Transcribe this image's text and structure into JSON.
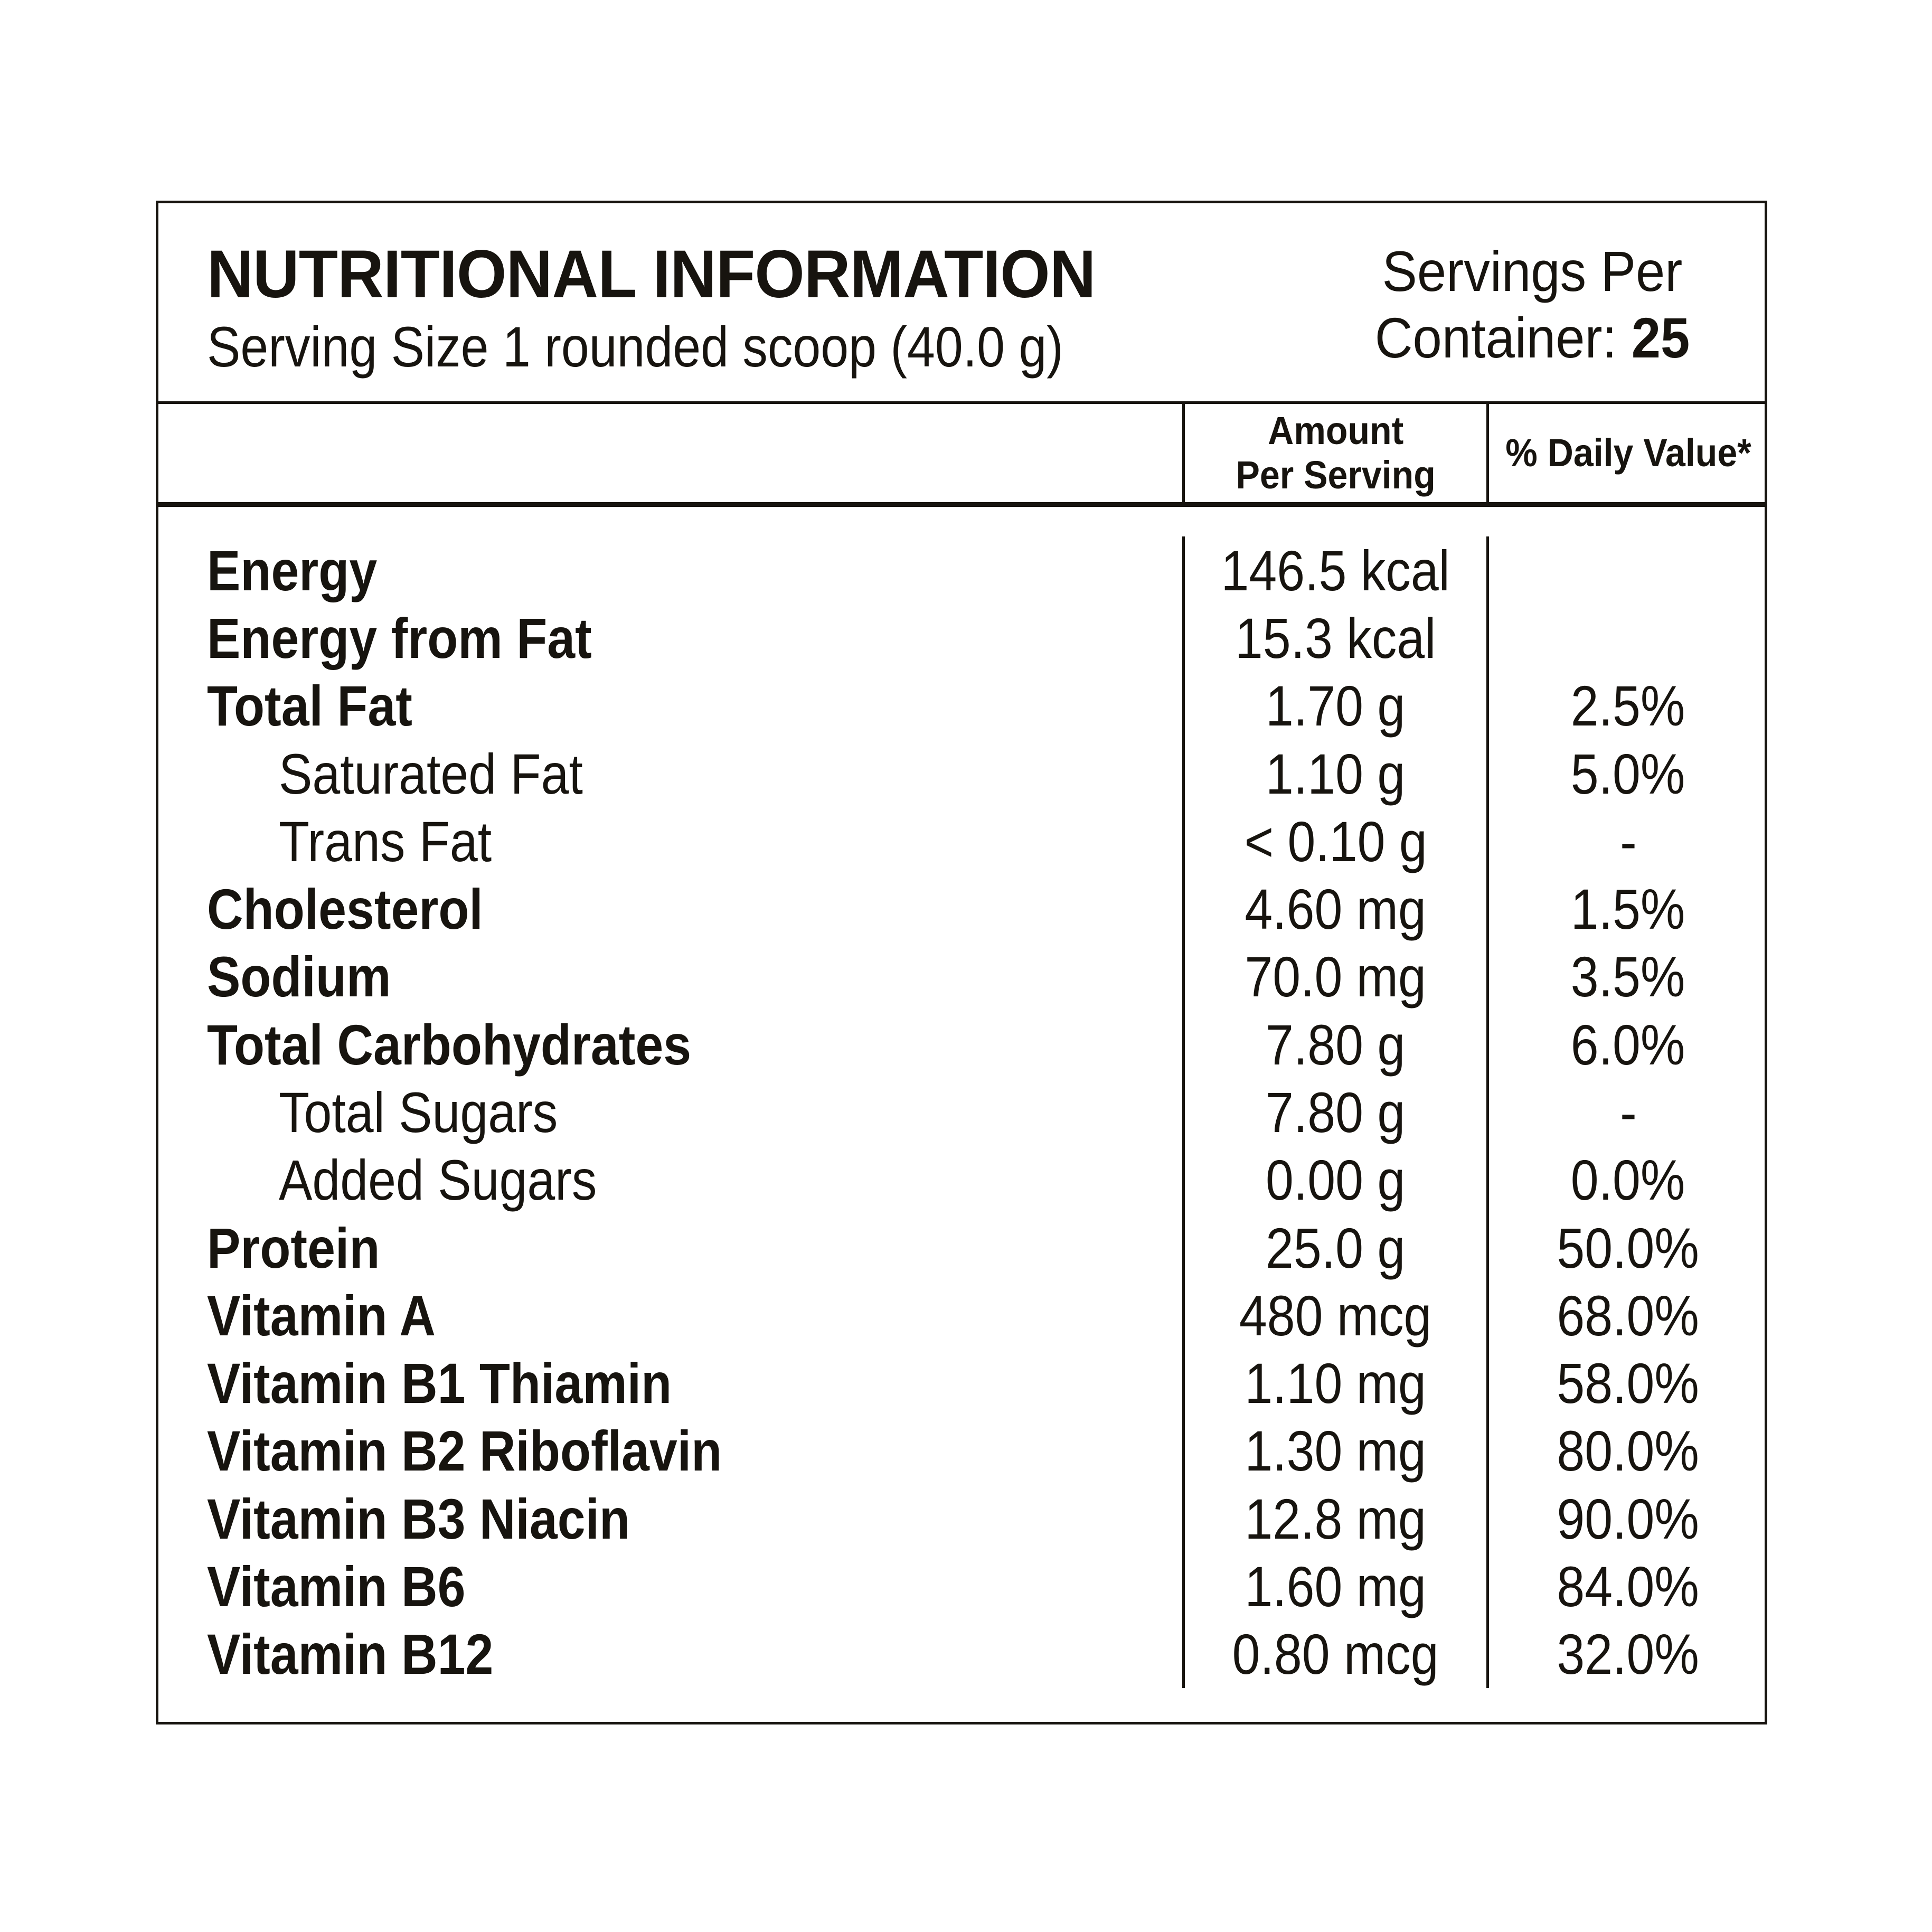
{
  "page": {
    "background": "#ffffff",
    "line_color": "#17140f",
    "text_color": "#17140f"
  },
  "header": {
    "title": "NUTRITIONAL INFORMATION",
    "serving_size": "Serving Size 1 rounded scoop (40.0 g)",
    "servings_line1": "Servings Per",
    "servings_line2_label": "Container: ",
    "servings_count": "25"
  },
  "columns": {
    "amount_line1": "Amount",
    "amount_line2": "Per Serving",
    "daily_value": "% Daily Value*"
  },
  "rows": [
    {
      "label": "Energy",
      "amount": "146.5 kcal",
      "dv": "",
      "bold": true,
      "indent": false
    },
    {
      "label": "Energy from Fat",
      "amount": "15.3 kcal",
      "dv": "",
      "bold": true,
      "indent": false
    },
    {
      "label": "Total Fat",
      "amount": "1.70 g",
      "dv": "2.5%",
      "bold": true,
      "indent": false
    },
    {
      "label": "Saturated Fat",
      "amount": "1.10 g",
      "dv": "5.0%",
      "bold": false,
      "indent": true
    },
    {
      "label": "Trans Fat",
      "amount": "< 0.10 g",
      "dv": "-",
      "bold": false,
      "indent": true
    },
    {
      "label": "Cholesterol",
      "amount": "4.60 mg",
      "dv": "1.5%",
      "bold": true,
      "indent": false
    },
    {
      "label": "Sodium",
      "amount": "70.0 mg",
      "dv": "3.5%",
      "bold": true,
      "indent": false
    },
    {
      "label": "Total Carbohydrates",
      "amount": "7.80 g",
      "dv": "6.0%",
      "bold": true,
      "indent": false
    },
    {
      "label": "Total Sugars",
      "amount": "7.80 g",
      "dv": "-",
      "bold": false,
      "indent": true
    },
    {
      "label": "Added Sugars",
      "amount": "0.00 g",
      "dv": "0.0%",
      "bold": false,
      "indent": true
    },
    {
      "label": "Protein",
      "amount": "25.0 g",
      "dv": "50.0%",
      "bold": true,
      "indent": false
    },
    {
      "label": "Vitamin A",
      "amount": "480 mcg",
      "dv": "68.0%",
      "bold": true,
      "indent": false
    },
    {
      "label": "Vitamin B1 Thiamin",
      "amount": "1.10 mg",
      "dv": "58.0%",
      "bold": true,
      "indent": false
    },
    {
      "label": "Vitamin B2 Riboflavin",
      "amount": "1.30 mg",
      "dv": "80.0%",
      "bold": true,
      "indent": false
    },
    {
      "label": "Vitamin B3 Niacin",
      "amount": "12.8 mg",
      "dv": "90.0%",
      "bold": true,
      "indent": false
    },
    {
      "label": "Vitamin B6",
      "amount": "1.60 mg",
      "dv": "84.0%",
      "bold": true,
      "indent": false
    },
    {
      "label": "Vitamin B12",
      "amount": "0.80 mcg",
      "dv": "32.0%",
      "bold": true,
      "indent": false
    }
  ]
}
